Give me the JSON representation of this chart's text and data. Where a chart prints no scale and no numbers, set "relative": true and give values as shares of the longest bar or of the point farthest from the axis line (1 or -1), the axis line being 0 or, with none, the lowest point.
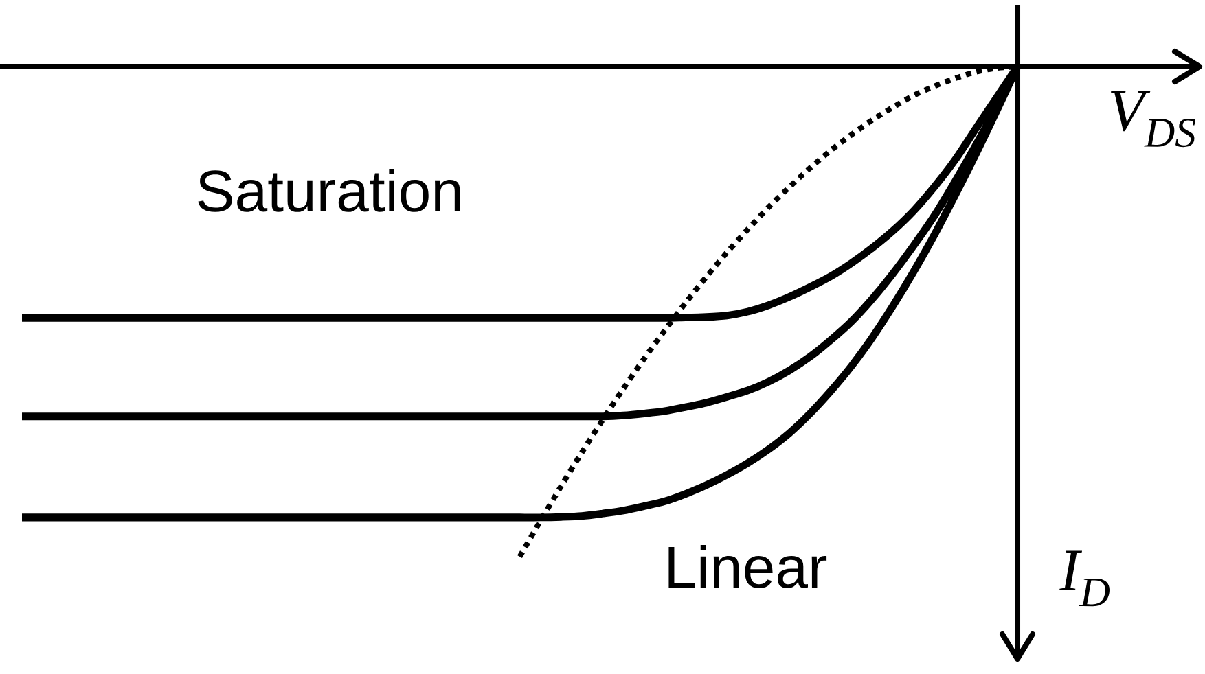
{
  "chart_data": {
    "type": "line",
    "relative": true,
    "xlabel": "V$_{DS}$",
    "ylabel": "I$_{D}$",
    "annotations": [
      "Saturation",
      "Linear"
    ],
    "categories": [
      null,
      null,
      null,
      null,
      null,
      null,
      null,
      null,
      null,
      null,
      null,
      null,
      null,
      null,
      null,
      null,
      null,
      null,
      null,
      null,
      null,
      null,
      null,
      null,
      null,
      null,
      null,
      null,
      null,
      null,
      null,
      null,
      null,
      null,
      null,
      null,
      null,
      null,
      null,
      null,
      null,
      null,
      null,
      null,
      null,
      null,
      null,
      null,
      null
    ],
    "series": [
      {
        "color": "#000000",
        "line_style": "solid",
        "values": [
          -0.513,
          -0.513,
          -0.513,
          -0.513,
          -0.513,
          -0.513,
          -0.513,
          -0.513,
          -0.513,
          -0.513,
          -0.513,
          -0.513,
          -0.513,
          -0.513,
          -0.513,
          -0.513,
          -0.513,
          -0.513,
          -0.513,
          -0.513,
          -0.513,
          -0.513,
          -0.513,
          -0.513,
          -0.513,
          -0.513,
          -0.513,
          -0.513,
          -0.513,
          -0.513,
          -0.513,
          -0.513,
          -0.512,
          -0.511,
          -0.508,
          -0.5,
          -0.487,
          -0.47,
          -0.45,
          -0.428,
          -0.401,
          -0.37,
          -0.335,
          -0.294,
          -0.245,
          -0.19,
          -0.126,
          -0.063,
          0
        ]
      },
      {
        "color": "#000000",
        "line_style": "solid",
        "values": [
          -0.714,
          -0.714,
          -0.714,
          -0.714,
          -0.714,
          -0.714,
          -0.714,
          -0.714,
          -0.714,
          -0.714,
          -0.714,
          -0.714,
          -0.714,
          -0.714,
          -0.714,
          -0.714,
          -0.714,
          -0.714,
          -0.714,
          -0.714,
          -0.714,
          -0.714,
          -0.714,
          -0.714,
          -0.714,
          -0.714,
          -0.714,
          -0.714,
          -0.714,
          -0.712,
          -0.708,
          -0.703,
          -0.695,
          -0.686,
          -0.674,
          -0.661,
          -0.643,
          -0.62,
          -0.592,
          -0.558,
          -0.52,
          -0.474,
          -0.422,
          -0.365,
          -0.304,
          -0.234,
          -0.16,
          -0.082,
          0
        ]
      },
      {
        "color": "#000000",
        "line_style": "solid",
        "values": [
          -0.92,
          -0.92,
          -0.92,
          -0.92,
          -0.92,
          -0.92,
          -0.92,
          -0.92,
          -0.92,
          -0.92,
          -0.92,
          -0.92,
          -0.92,
          -0.92,
          -0.92,
          -0.92,
          -0.92,
          -0.92,
          -0.92,
          -0.92,
          -0.92,
          -0.92,
          -0.92,
          -0.92,
          -0.92,
          -0.92,
          -0.919,
          -0.917,
          -0.912,
          -0.906,
          -0.897,
          -0.887,
          -0.872,
          -0.854,
          -0.833,
          -0.809,
          -0.781,
          -0.748,
          -0.708,
          -0.662,
          -0.611,
          -0.553,
          -0.488,
          -0.418,
          -0.343,
          -0.262,
          -0.178,
          -0.09,
          0
        ]
      },
      {
        "color": "#000000",
        "line_style": "dotted",
        "values": [
          null,
          null,
          null,
          null,
          null,
          null,
          null,
          null,
          null,
          null,
          null,
          null,
          null,
          null,
          null,
          null,
          null,
          null,
          null,
          null,
          null,
          null,
          null,
          null,
          -1,
          -0.927,
          -0.856,
          -0.787,
          -0.721,
          -0.657,
          -0.596,
          -0.538,
          -0.482,
          -0.429,
          -0.379,
          -0.332,
          -0.287,
          -0.246,
          -0.207,
          -0.171,
          -0.139,
          -0.109,
          -0.083,
          -0.059,
          -0.04,
          -0.024,
          -0.011,
          -0.003,
          0
        ]
      }
    ]
  }
}
